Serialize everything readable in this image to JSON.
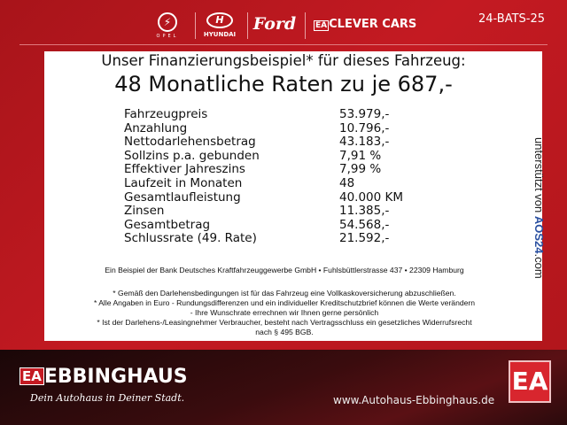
{
  "header": {
    "brands": [
      "OPEL",
      "HYUNDAI",
      "Ford",
      "CLEVER CARS"
    ],
    "plate": "24-BATS-25"
  },
  "title": {
    "line1": "Unser Finanzierungsbeispiel* für dieses Fahrzeug:",
    "line2": "48 Monatliche Raten zu je 687,-"
  },
  "rows": [
    {
      "label": "Fahrzeugpreis",
      "value": "53.979,-"
    },
    {
      "label": "Anzahlung",
      "value": "10.796,-"
    },
    {
      "label": "Nettodarlehensbetrag",
      "value": "43.183,-"
    },
    {
      "label": "Sollzins p.a. gebunden",
      "value": "7,91 %"
    },
    {
      "label": "Effektiver Jahreszins",
      "value": "7,99 %"
    },
    {
      "label": "Laufzeit in Monaten",
      "value": "48"
    },
    {
      "label": "Gesamtlaufleistung",
      "value": "40.000 KM"
    },
    {
      "label": "Zinsen",
      "value": "11.385,-"
    },
    {
      "label": "Gesamtbetrag",
      "value": "54.568,-"
    },
    {
      "label": "Schlussrate (49. Rate)",
      "value": "21.592,-"
    }
  ],
  "sponsor": {
    "prefix": "unterstützt von ",
    "brand": "AOS24",
    ".com": ".com"
  },
  "notes": {
    "bank": "Ein Beispiel der Bank Deutsches Kraftfahrzeuggewerbe GmbH • Fuhlsbüttlerstrasse 437 • 22309 Hamburg",
    "n1": "* Gemäß den Darlehensbedingungen ist für das Fahrzeug eine Vollkaskoversicherung abzuschließen.",
    "n2": "* Alle Angaben in Euro - Rundungsdifferenzen und ein individueller Kreditschutzbrief können die Werte verändern",
    "n2b": "- Ihre Wunschrate errechnen wir Ihnen gerne persönlich",
    "n3": "* Ist der Darlehens-/Leasingnehmer Verbraucher, besteht nach Vertragsschluss ein gesetzliches Widerrufsrecht",
    "n3b": "nach § 495 BGB."
  },
  "footer": {
    "logo_mark": "EA",
    "name": "EBBINGHAUS",
    "slogan": "Dein Autohaus in Deiner Stadt.",
    "url": "www.Autohaus-Ebbinghaus.de"
  },
  "colors": {
    "brand_red": "#c41a22",
    "aos_blue": "#2a4fa0",
    "aos_orange": "#e08a1a"
  }
}
